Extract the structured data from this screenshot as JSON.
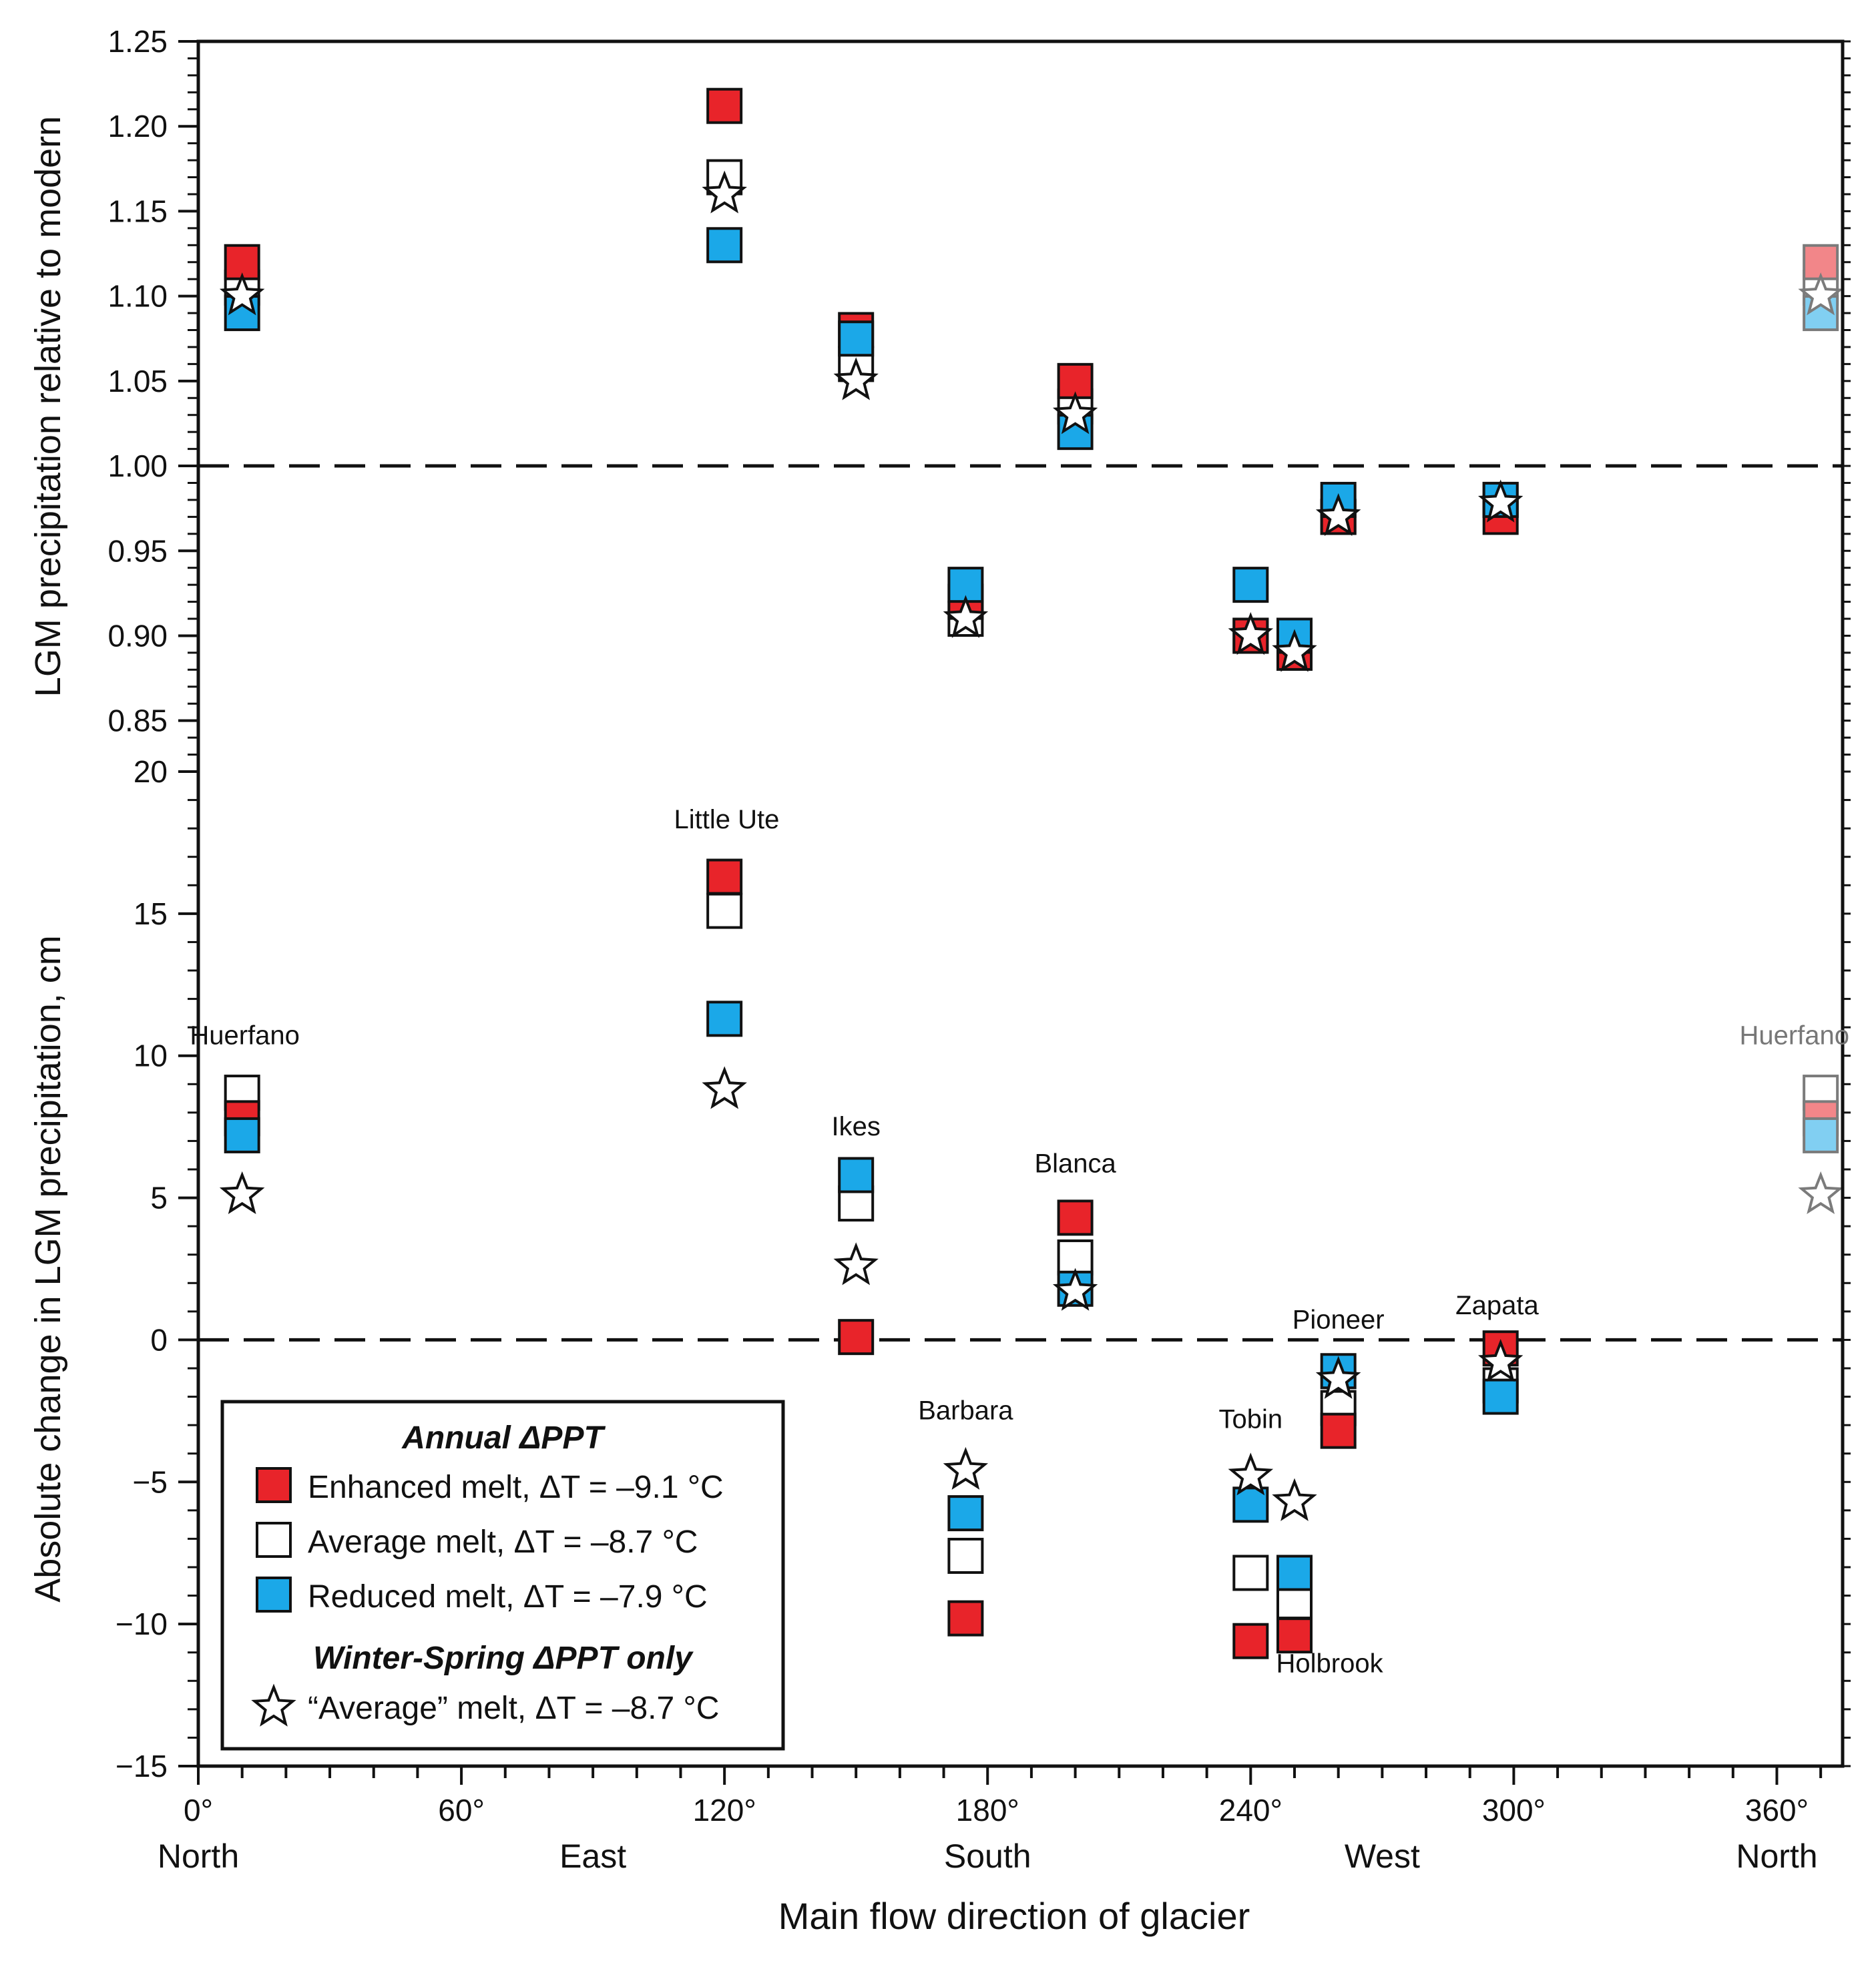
{
  "chart_data": {
    "type": "scatter",
    "xlabel": "Main flow direction of glacier",
    "xlim": [
      0,
      375
    ],
    "x_ticks": [
      {
        "value": 0,
        "label": "0°"
      },
      {
        "value": 60,
        "label": "60°"
      },
      {
        "value": 120,
        "label": "120°"
      },
      {
        "value": 180,
        "label": "180°"
      },
      {
        "value": 240,
        "label": "240°"
      },
      {
        "value": 300,
        "label": "300°"
      },
      {
        "value": 360,
        "label": "360°"
      }
    ],
    "x_directions": [
      {
        "value": 0,
        "label": "North"
      },
      {
        "value": 90,
        "label": "East"
      },
      {
        "value": 180,
        "label": "South"
      },
      {
        "value": 270,
        "label": "West"
      },
      {
        "value": 360,
        "label": "North"
      }
    ],
    "colors": {
      "enhanced": "#e8242a",
      "average": "#ffffff",
      "reduced": "#1ba8e8",
      "star_fill": "#ffffff",
      "stroke": "#111111"
    },
    "panels": [
      {
        "id": "relative",
        "ylabel": "LGM precipitation relative to modern",
        "ylim": [
          0.82,
          1.25
        ],
        "y_ticks": [
          {
            "value": 0.85,
            "label": "0.85"
          },
          {
            "value": 0.9,
            "label": "0.90"
          },
          {
            "value": 0.95,
            "label": "0.95"
          },
          {
            "value": 1.0,
            "label": "1.00"
          },
          {
            "value": 1.05,
            "label": "1.05"
          },
          {
            "value": 1.1,
            "label": "1.10"
          },
          {
            "value": 1.15,
            "label": "1.15"
          },
          {
            "value": 1.2,
            "label": "1.20"
          },
          {
            "value": 1.25,
            "label": "1.25"
          }
        ],
        "reference_line": 1.0,
        "points": [
          {
            "glacier": "Huerfano",
            "x": 10,
            "enhanced": 1.12,
            "average": 1.105,
            "reduced": 1.09,
            "winter_spring": 1.1
          },
          {
            "glacier": "Little Ute",
            "x": 120,
            "enhanced": 1.212,
            "average": 1.17,
            "reduced": 1.13,
            "winter_spring": 1.16
          },
          {
            "glacier": "Ikes",
            "x": 150,
            "enhanced": 1.08,
            "average": 1.06,
            "reduced": 1.075,
            "winter_spring": 1.05
          },
          {
            "glacier": "Blanca",
            "x": 200,
            "enhanced": 1.05,
            "average": 1.035,
            "reduced": 1.02,
            "winter_spring": 1.03
          },
          {
            "glacier": "Barbara",
            "x": 175,
            "enhanced": 0.92,
            "average": 0.91,
            "reduced": 0.93,
            "winter_spring": 0.91
          },
          {
            "glacier": "Tobin",
            "x": 240,
            "enhanced": 0.9,
            "average": 0.9,
            "reduced": 0.93,
            "winter_spring": 0.9
          },
          {
            "glacier": "Holbrook",
            "x": 250,
            "enhanced": 0.89,
            "average": 0.89,
            "reduced": 0.9,
            "winter_spring": 0.89
          },
          {
            "glacier": "Pioneer",
            "x": 260,
            "enhanced": 0.97,
            "average": 0.97,
            "reduced": 0.98,
            "winter_spring": 0.97
          },
          {
            "glacier": "Zapata",
            "x": 297,
            "enhanced": 0.97,
            "average": 0.98,
            "reduced": 0.98,
            "winter_spring": 0.978
          },
          {
            "glacier": "Huerfano",
            "x": 370,
            "enhanced": 1.12,
            "average": 1.105,
            "reduced": 1.09,
            "winter_spring": 1.1,
            "faded": true
          }
        ]
      },
      {
        "id": "absolute",
        "ylabel": "Absolute change in LGM  precipitation, cm",
        "ylim": [
          -15,
          20
        ],
        "y_ticks": [
          {
            "value": -15,
            "label": "−15"
          },
          {
            "value": -10,
            "label": "−10"
          },
          {
            "value": -5,
            "label": "−5"
          },
          {
            "value": 0,
            "label": "0"
          },
          {
            "value": 5,
            "label": "5"
          },
          {
            "value": 10,
            "label": "10"
          },
          {
            "value": 15,
            "label": "15"
          },
          {
            "value": 20,
            "label": "20"
          }
        ],
        "reference_line": 0,
        "points": [
          {
            "glacier": "Huerfano",
            "x": 10,
            "enhanced": 7.8,
            "average": 8.7,
            "reduced": 7.2,
            "winter_spring": 5.1,
            "label": "Huerfano",
            "label_dx": 0.6,
            "label_value": 10.4
          },
          {
            "glacier": "Little Ute",
            "x": 120,
            "enhanced": 16.3,
            "average": 15.1,
            "reduced": 11.3,
            "winter_spring": 8.8,
            "label": "Little Ute",
            "label_dx": 0.5,
            "label_value": 18.0
          },
          {
            "glacier": "Ikes",
            "x": 150,
            "enhanced": 0.1,
            "average": 4.8,
            "reduced": 5.8,
            "winter_spring": 2.6,
            "label": "Ikes",
            "label_dx": 0.0,
            "label_value": 7.2
          },
          {
            "glacier": "Blanca",
            "x": 200,
            "enhanced": 4.3,
            "average": 2.9,
            "reduced": 1.8,
            "winter_spring": 1.7,
            "label": "Blanca",
            "label_dx": 0.0,
            "label_value": 5.9
          },
          {
            "glacier": "Barbara",
            "x": 175,
            "enhanced": -9.8,
            "average": -7.6,
            "reduced": -6.1,
            "winter_spring": -4.6,
            "label": "Barbara",
            "label_dx": 0.0,
            "label_value": -2.8
          },
          {
            "glacier": "Tobin",
            "x": 240,
            "enhanced": -10.6,
            "average": -8.2,
            "reduced": -5.8,
            "winter_spring": -4.8,
            "label": "Tobin",
            "label_dx": 0.0,
            "label_value": -3.1
          },
          {
            "glacier": "Holbrook",
            "x": 250,
            "enhanced": -10.4,
            "average": -9.2,
            "reduced": -8.2,
            "winter_spring": -5.7,
            "label": "Holbrook",
            "label_dx": 8.0,
            "label_value": -11.7
          },
          {
            "glacier": "Pioneer",
            "x": 260,
            "enhanced": -3.2,
            "average": -2.4,
            "reduced": -1.1,
            "winter_spring": -1.4,
            "label": "Pioneer",
            "label_dx": 0.0,
            "label_value": 0.4
          },
          {
            "glacier": "Zapata",
            "x": 297,
            "enhanced": -0.3,
            "average": -1.6,
            "reduced": -2.0,
            "winter_spring": -0.8,
            "label": "Zapata",
            "label_dx": -0.8,
            "label_value": 0.9
          },
          {
            "glacier": "Huerfano",
            "x": 370,
            "enhanced": 7.8,
            "average": 8.7,
            "reduced": 7.2,
            "winter_spring": 5.1,
            "label": "Huerfano",
            "label_dx": -6.0,
            "label_value": 10.4,
            "faded": true
          }
        ]
      }
    ],
    "legend": {
      "placement": "lower-left",
      "annual_title": "Annual ΔPPT",
      "entries": [
        {
          "key": "enhanced",
          "label": "Enhanced melt, ΔT = –9.1 °C"
        },
        {
          "key": "average",
          "label": "Average melt, ΔT = –8.7 °C"
        },
        {
          "key": "reduced",
          "label": "Reduced melt, ΔT = –7.9 °C"
        }
      ],
      "winter_title": "Winter-Spring ΔPPT only",
      "star_label": "“Average” melt, ΔT = –8.7 °C"
    }
  }
}
